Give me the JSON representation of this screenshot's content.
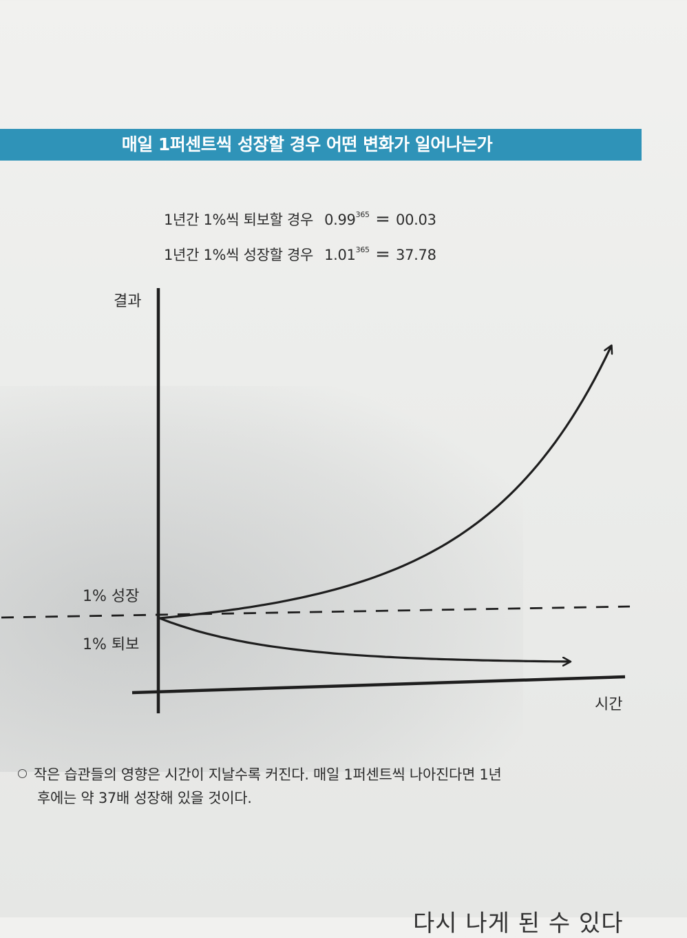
{
  "banner": {
    "title": "매일 1퍼센트씩 성장할 경우 어떤 변화가 일어나는가"
  },
  "formulas": [
    {
      "label": "1년간 1%씩 퇴보할 경우",
      "base": "0.99",
      "exponent": "365",
      "equals": "=",
      "result": "00.03"
    },
    {
      "label": "1년간 1%씩 성장할 경우",
      "base": "1.01",
      "exponent": "365",
      "equals": "=",
      "result": "37.78"
    }
  ],
  "chart_data": {
    "type": "line",
    "ylabel": "결과",
    "xlabel": "시간",
    "x_range": [
      0,
      365
    ],
    "baseline": {
      "label_above": "1% 성장",
      "label_below": "1% 퇴보",
      "value": 1.0
    },
    "series": [
      {
        "name": "1% 성장",
        "rate": 1.01,
        "start": 1.0,
        "end": 37.78
      },
      {
        "name": "1% 퇴보",
        "rate": 0.99,
        "start": 1.0,
        "end": 0.03
      }
    ]
  },
  "caption": {
    "line1": "작은 습관들의 영향은 시간이 지날수록 커진다. 매일 1퍼센트씩 나아진다면 1년",
    "line2": "후에는 약 37배 성장해 있을 것이다."
  },
  "page_bottom_text": "다시 나게 된 수 있다"
}
